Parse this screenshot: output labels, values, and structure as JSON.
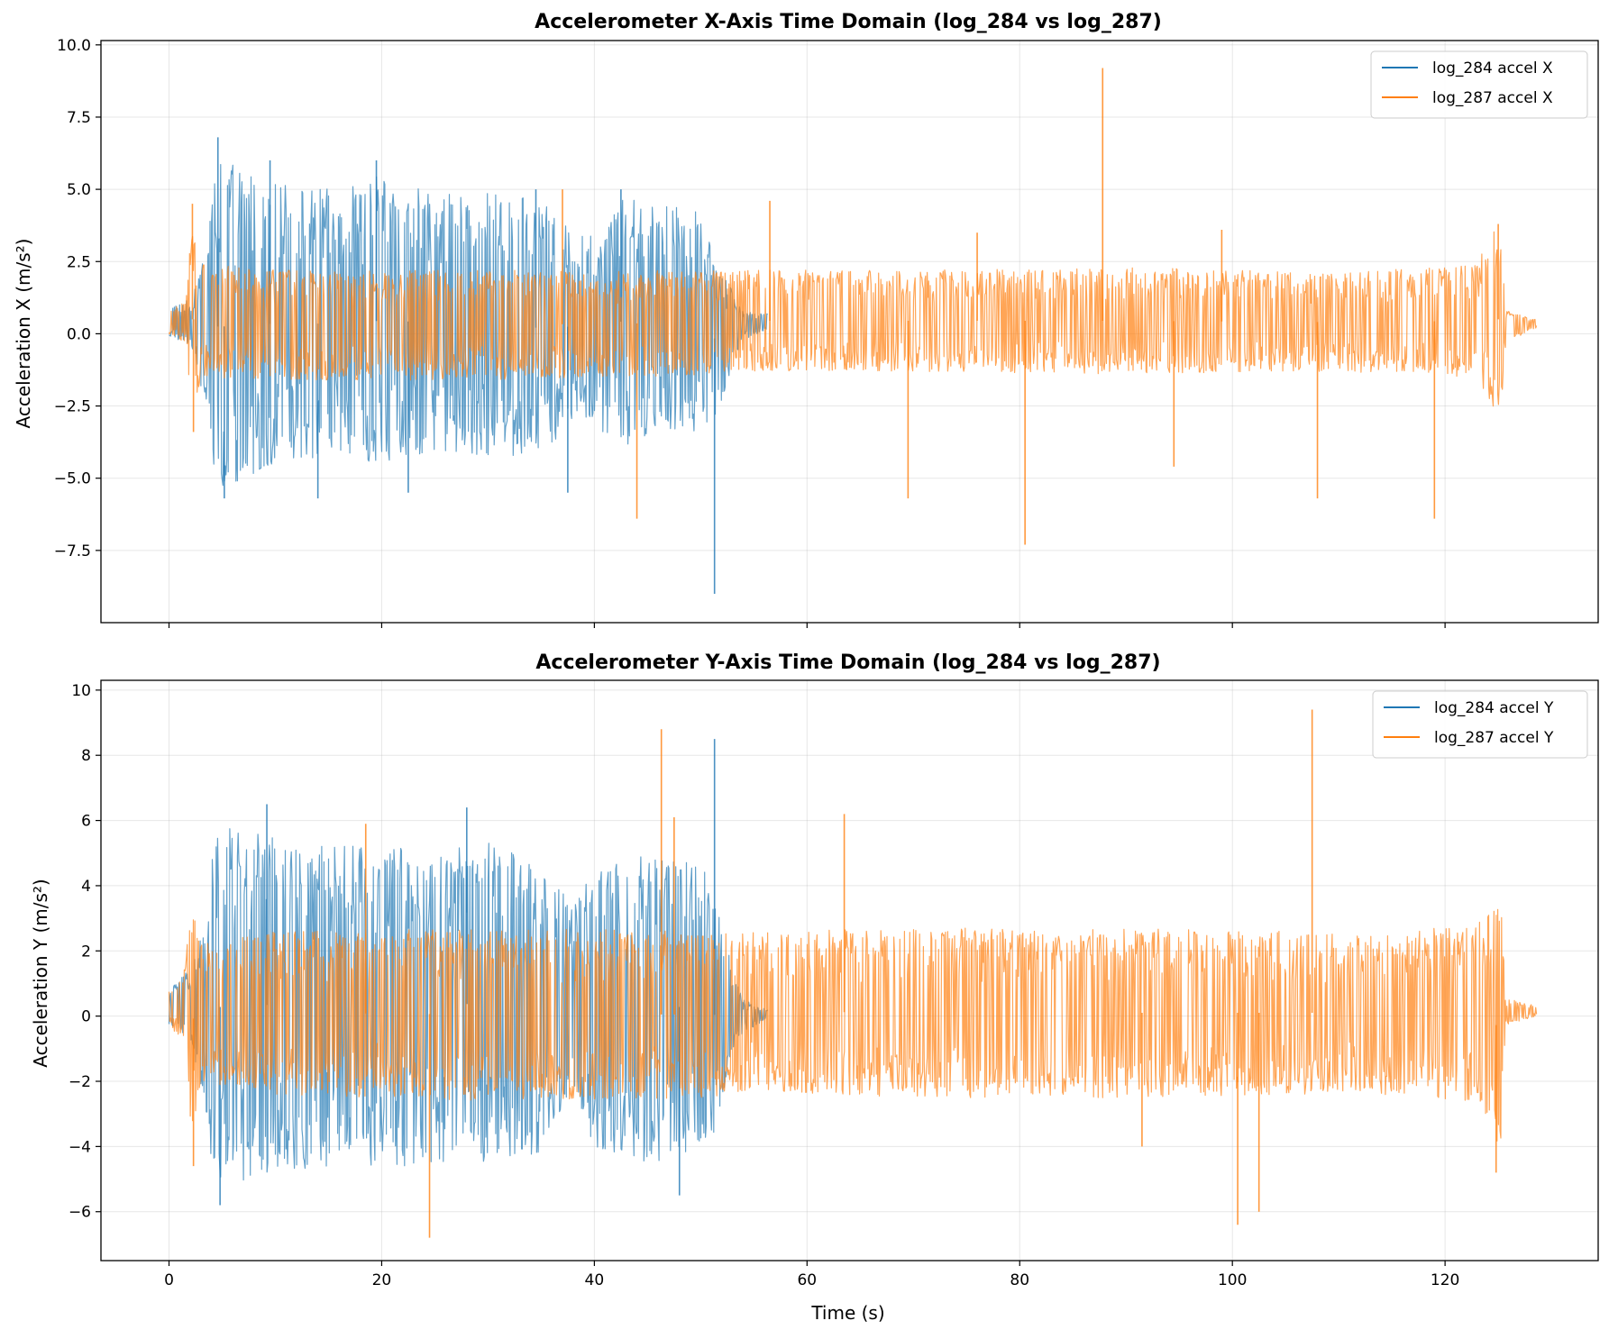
{
  "colors": {
    "series1": "#1f77b4",
    "series2": "#ff7f0e",
    "grid": "#b0b0b0"
  },
  "chart_data": [
    {
      "type": "line",
      "title": "Accelerometer X-Axis Time Domain (log_284 vs log_287)",
      "xlabel": "",
      "ylabel": "Acceleration X (m/s²)",
      "xlim": [
        -6.4,
        134.4
      ],
      "ylim": [
        -10.0,
        10.15
      ],
      "xticks": [
        0,
        20,
        40,
        60,
        80,
        100,
        120
      ],
      "show_xticklabels": false,
      "yticks": [
        -7.5,
        -5.0,
        -2.5,
        0.0,
        2.5,
        5.0,
        7.5,
        10.0
      ],
      "ytick_labels": [
        "−7.5",
        "−5.0",
        "−2.5",
        "0.0",
        "2.5",
        "5.0",
        "7.5",
        "10.0"
      ],
      "grid": true,
      "legend_position": "top-right",
      "series": [
        {
          "name": "log_284 accel X",
          "duration_s": 56.3,
          "envelope": [
            [
              0,
              -0.1,
              0.9
            ],
            [
              2,
              -0.4,
              1.2
            ],
            [
              3.5,
              -2.5,
              3.0
            ],
            [
              4,
              -4.5,
              5.0
            ],
            [
              5,
              -5.5,
              6.0
            ],
            [
              10,
              -4.5,
              5.2
            ],
            [
              15,
              -4.3,
              5.0
            ],
            [
              20,
              -4.6,
              5.5
            ],
            [
              25,
              -4.0,
              4.8
            ],
            [
              30,
              -4.3,
              4.9
            ],
            [
              35,
              -4.2,
              4.6
            ],
            [
              38,
              -3.0,
              3.5
            ],
            [
              40,
              -3.0,
              3.4
            ],
            [
              42,
              -4.0,
              4.8
            ],
            [
              45,
              -3.6,
              4.6
            ],
            [
              50,
              -3.4,
              4.2
            ],
            [
              51.5,
              -3.0,
              2.5
            ],
            [
              53,
              -1.0,
              1.5
            ],
            [
              54,
              -0.2,
              0.8
            ],
            [
              56.3,
              0.1,
              0.7
            ]
          ],
          "spikes": [
            [
              4.6,
              6.8
            ],
            [
              5.2,
              -5.7
            ],
            [
              9.5,
              6.0
            ],
            [
              14,
              -5.7
            ],
            [
              19.5,
              6.0
            ],
            [
              22.5,
              -5.5
            ],
            [
              34.5,
              5.0
            ],
            [
              37.5,
              -5.5
            ],
            [
              42.5,
              5.0
            ],
            [
              51.3,
              -9.0
            ]
          ]
        },
        {
          "name": "log_287 accel X",
          "duration_s": 128.6,
          "envelope": [
            [
              0,
              0.0,
              0.8
            ],
            [
              1.5,
              -0.3,
              1.2
            ],
            [
              2.2,
              -3.0,
              4.0
            ],
            [
              3,
              -1.5,
              2.5
            ],
            [
              10,
              -1.6,
              2.2
            ],
            [
              30,
              -1.6,
              2.2
            ],
            [
              53,
              -1.4,
              2.2
            ],
            [
              54,
              -1.3,
              2.2
            ],
            [
              70,
              -1.3,
              2.2
            ],
            [
              90,
              -1.4,
              2.3
            ],
            [
              110,
              -1.3,
              2.1
            ],
            [
              123,
              -1.5,
              2.4
            ],
            [
              124.5,
              -2.6,
              3.6
            ],
            [
              125.3,
              -2.8,
              3.8
            ],
            [
              125.7,
              -0.3,
              0.8
            ],
            [
              128.6,
              0.2,
              0.5
            ]
          ],
          "spikes": [
            [
              2.2,
              4.5
            ],
            [
              2.3,
              -3.4
            ],
            [
              37,
              5.0
            ],
            [
              44,
              -6.4
            ],
            [
              56.5,
              4.6
            ],
            [
              69.5,
              -5.7
            ],
            [
              76,
              3.5
            ],
            [
              80.5,
              -7.3
            ],
            [
              87.8,
              9.2
            ],
            [
              94.5,
              -4.6
            ],
            [
              99,
              3.6
            ],
            [
              108,
              -5.7
            ],
            [
              119,
              -6.4
            ],
            [
              125,
              3.8
            ]
          ]
        }
      ]
    },
    {
      "type": "line",
      "title": "Accelerometer Y-Axis Time Domain (log_284 vs log_287)",
      "xlabel": "Time (s)",
      "ylabel": "Acceleration Y (m/s²)",
      "xlim": [
        -6.4,
        134.4
      ],
      "ylim": [
        -7.5,
        10.3
      ],
      "xticks": [
        0,
        20,
        40,
        60,
        80,
        100,
        120
      ],
      "show_xticklabels": true,
      "yticks": [
        -6,
        -4,
        -2,
        0,
        2,
        4,
        6,
        8,
        10
      ],
      "ytick_labels": [
        "−6",
        "−4",
        "−2",
        "0",
        "2",
        "4",
        "6",
        "8",
        "10"
      ],
      "grid": true,
      "legend_position": "top-right",
      "series": [
        {
          "name": "log_284 accel Y",
          "duration_s": 56.3,
          "envelope": [
            [
              0,
              -0.3,
              0.8
            ],
            [
              2,
              -0.8,
              1.5
            ],
            [
              3.5,
              -3.0,
              3.0
            ],
            [
              4,
              -4.6,
              5.0
            ],
            [
              5,
              -5.2,
              5.8
            ],
            [
              10,
              -4.8,
              5.5
            ],
            [
              15,
              -4.6,
              5.2
            ],
            [
              20,
              -4.7,
              5.3
            ],
            [
              25,
              -4.5,
              5.0
            ],
            [
              30,
              -4.5,
              5.4
            ],
            [
              35,
              -4.2,
              4.6
            ],
            [
              38,
              -2.5,
              3.5
            ],
            [
              40,
              -4.0,
              4.5
            ],
            [
              45,
              -4.5,
              5.0
            ],
            [
              50,
              -4.2,
              4.8
            ],
            [
              51.5,
              -3.5,
              3.5
            ],
            [
              53,
              -1.0,
              1.5
            ],
            [
              54,
              -0.5,
              0.5
            ],
            [
              56.3,
              -0.1,
              0.2
            ]
          ],
          "spikes": [
            [
              4.8,
              -5.8
            ],
            [
              9.2,
              6.5
            ],
            [
              28,
              6.4
            ],
            [
              48,
              -5.5
            ],
            [
              51.3,
              8.5
            ]
          ]
        },
        {
          "name": "log_287 accel Y",
          "duration_s": 128.6,
          "envelope": [
            [
              0,
              -0.3,
              0.8
            ],
            [
              1.5,
              -0.8,
              1.5
            ],
            [
              2.2,
              -4.0,
              3.8
            ],
            [
              3,
              -2.0,
              2.2
            ],
            [
              10,
              -2.4,
              2.6
            ],
            [
              30,
              -2.6,
              2.7
            ],
            [
              53,
              -2.5,
              2.6
            ],
            [
              54,
              -2.3,
              2.6
            ],
            [
              70,
              -2.5,
              2.7
            ],
            [
              90,
              -2.5,
              2.7
            ],
            [
              110,
              -2.4,
              2.6
            ],
            [
              123,
              -2.6,
              2.8
            ],
            [
              124.5,
              -3.8,
              3.4
            ],
            [
              125.3,
              -4.0,
              3.2
            ],
            [
              125.7,
              -0.3,
              0.6
            ],
            [
              128.6,
              0.0,
              0.3
            ]
          ],
          "spikes": [
            [
              2.3,
              -4.6
            ],
            [
              18.5,
              5.9
            ],
            [
              24.5,
              -6.8
            ],
            [
              46.3,
              8.8
            ],
            [
              47.5,
              6.1
            ],
            [
              63.5,
              6.2
            ],
            [
              91.5,
              -4.0
            ],
            [
              100.5,
              -6.4
            ],
            [
              102.5,
              -6.0
            ],
            [
              107.5,
              9.4
            ],
            [
              124.8,
              -4.8
            ]
          ]
        }
      ]
    }
  ]
}
